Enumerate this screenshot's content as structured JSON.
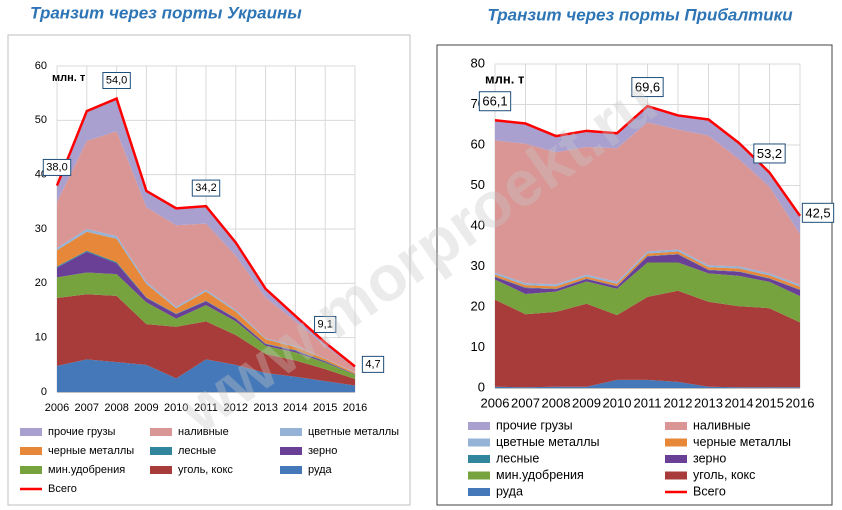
{
  "watermark": "www.morproekt.ru",
  "chart_data": [
    {
      "type": "area",
      "stacked": true,
      "title": "Транзит через порты Украины",
      "y_label": "млн. т",
      "categories": [
        2006,
        2007,
        2008,
        2009,
        2010,
        2011,
        2012,
        2013,
        2014,
        2015,
        2016
      ],
      "ylim": [
        0,
        60
      ],
      "yticks": [
        0,
        10,
        20,
        30,
        40,
        50,
        60
      ],
      "grid": true,
      "legend_columns": 3,
      "series": [
        {
          "name": "прочие грузы",
          "color": "#a9a0d0",
          "values": [
            3.0,
            5.5,
            6.0,
            3.0,
            3.1,
            3.2,
            2.4,
            1.6,
            1.0,
            0.6,
            0.3
          ]
        },
        {
          "name": "наливные",
          "color": "#d99694",
          "values": [
            8.5,
            16.2,
            19.3,
            13.7,
            15.0,
            12.2,
            10.0,
            7.5,
            4.5,
            2.3,
            0.8
          ]
        },
        {
          "name": "цветные металлы",
          "color": "#95b3d7",
          "values": [
            0.4,
            0.5,
            0.5,
            0.4,
            0.3,
            0.3,
            0.3,
            0.2,
            0.2,
            0.1,
            0.1
          ]
        },
        {
          "name": "черные металлы",
          "color": "#e6873a",
          "values": [
            3.0,
            3.5,
            4.3,
            2.5,
            1.0,
            1.7,
            1.2,
            0.8,
            0.6,
            0.4,
            0.2
          ]
        },
        {
          "name": "лесные",
          "color": "#31859c",
          "values": [
            0.2,
            0.2,
            0.2,
            0.1,
            0.1,
            0.1,
            0.1,
            0.1,
            0.1,
            0.1,
            0.0
          ]
        },
        {
          "name": "зерно",
          "color": "#6a3f96",
          "values": [
            1.8,
            3.8,
            2.0,
            0.8,
            0.8,
            0.7,
            0.5,
            0.3,
            0.3,
            0.2,
            0.1
          ]
        },
        {
          "name": "мин.удобрения",
          "color": "#77a33f",
          "values": [
            3.8,
            4.0,
            4.0,
            4.0,
            1.5,
            3.0,
            2.5,
            1.5,
            1.5,
            1.2,
            0.8
          ]
        },
        {
          "name": "уголь, кокс",
          "color": "#a83c3a",
          "values": [
            12.5,
            12.0,
            12.2,
            7.5,
            9.5,
            7.0,
            5.5,
            3.5,
            3.0,
            2.2,
            1.2
          ]
        },
        {
          "name": "руда",
          "color": "#4478b8",
          "values": [
            4.8,
            6.0,
            5.5,
            5.0,
            2.5,
            6.0,
            5.0,
            3.5,
            2.8,
            2.0,
            1.2
          ]
        }
      ],
      "total": {
        "name": "Всего",
        "color": "#ff0000",
        "values": [
          38.0,
          51.7,
          54.0,
          37.0,
          33.8,
          34.2,
          27.5,
          19.0,
          14.0,
          9.1,
          4.7
        ],
        "value_labels": [
          "38,0",
          null,
          "54,0",
          null,
          null,
          "34,2",
          null,
          null,
          null,
          "9,1",
          "4,7"
        ]
      }
    },
    {
      "type": "area",
      "stacked": true,
      "title": "Транзит через порты Прибалтики",
      "y_label": "млн. т",
      "categories": [
        2006,
        2007,
        2008,
        2009,
        2010,
        2011,
        2012,
        2013,
        2014,
        2015,
        2016
      ],
      "ylim": [
        0,
        80
      ],
      "yticks": [
        0,
        10,
        20,
        30,
        40,
        50,
        60,
        70,
        80
      ],
      "grid": true,
      "legend_columns": 2,
      "series": [
        {
          "name": "прочие грузы",
          "color": "#a9a0d0",
          "values": [
            5.0,
            5.0,
            4.0,
            4.0,
            3.7,
            4.0,
            3.5,
            4.0,
            4.0,
            3.5,
            4.5
          ]
        },
        {
          "name": "наливные",
          "color": "#d99694",
          "values": [
            32.6,
            34.4,
            32.6,
            31.5,
            33.0,
            31.9,
            29.6,
            32.0,
            26.5,
            21.4,
            12.5
          ]
        },
        {
          "name": "цветные металлы",
          "color": "#95b3d7",
          "values": [
            0.5,
            0.5,
            0.5,
            0.5,
            0.5,
            0.5,
            0.5,
            0.5,
            0.5,
            0.5,
            0.5
          ]
        },
        {
          "name": "черные металлы",
          "color": "#e6873a",
          "values": [
            0.5,
            0.6,
            0.6,
            0.5,
            0.5,
            0.6,
            0.6,
            0.6,
            0.7,
            0.7,
            0.7
          ]
        },
        {
          "name": "лесные",
          "color": "#31859c",
          "values": [
            0.1,
            0.1,
            0.1,
            0.1,
            0.1,
            0.1,
            0.1,
            0.1,
            0.1,
            0.1,
            0.1
          ]
        },
        {
          "name": "зерно",
          "color": "#6a3f96",
          "values": [
            0.6,
            1.5,
            0.6,
            0.6,
            0.6,
            1.5,
            2.0,
            0.8,
            1.0,
            0.8,
            1.5
          ]
        },
        {
          "name": "мин.удобрения",
          "color": "#77a33f",
          "values": [
            5.0,
            5.0,
            5.0,
            5.5,
            6.5,
            8.5,
            7.0,
            7.0,
            7.5,
            6.5,
            6.5
          ]
        },
        {
          "name": "уголь, кокс",
          "color": "#a83c3a",
          "values": [
            21.5,
            18.0,
            18.5,
            20.5,
            16.0,
            20.5,
            22.5,
            21.0,
            20.0,
            19.5,
            16.0
          ]
        },
        {
          "name": "руда",
          "color": "#4478b8",
          "values": [
            0.3,
            0.2,
            0.3,
            0.3,
            2.0,
            2.0,
            1.5,
            0.3,
            0.2,
            0.2,
            0.2
          ]
        }
      ],
      "total": {
        "name": "Всего",
        "color": "#ff0000",
        "values": [
          66.1,
          65.3,
          62.2,
          63.5,
          62.9,
          69.6,
          67.3,
          66.3,
          60.5,
          53.2,
          42.5
        ],
        "value_labels": [
          "66,1",
          null,
          null,
          null,
          null,
          "69,6",
          null,
          null,
          null,
          "53,2",
          "42,5"
        ]
      }
    }
  ]
}
